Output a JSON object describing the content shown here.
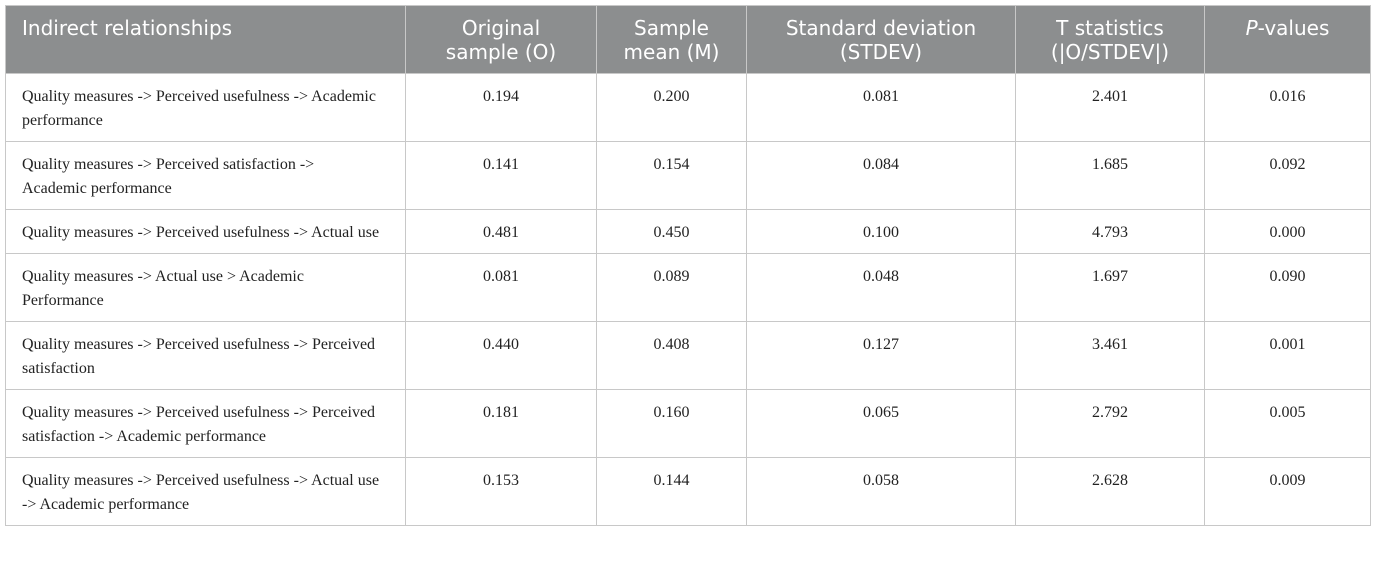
{
  "table": {
    "headers": [
      "Indirect relationships",
      "Original\nsample (O)",
      "Sample\nmean (M)",
      "Standard deviation\n(STDEV)",
      "T statistics\n(|O/STDEV|)",
      "P-values"
    ],
    "rows": [
      [
        "Quality measures -> Perceived usefulness -> Academic performance",
        "0.194",
        "0.200",
        "0.081",
        "2.401",
        "0.016"
      ],
      [
        "Quality measures -> Perceived satisfaction -> Academic performance",
        "0.141",
        "0.154",
        "0.084",
        "1.685",
        "0.092"
      ],
      [
        "Quality measures -> Perceived usefulness -> Actual use",
        "0.481",
        "0.450",
        "0.100",
        "4.793",
        "0.000"
      ],
      [
        "Quality measures -> Actual use > Academic Performance",
        "0.081",
        "0.089",
        "0.048",
        "1.697",
        "0.090"
      ],
      [
        "Quality measures -> Perceived usefulness -> Perceived satisfaction",
        "0.440",
        "0.408",
        "0.127",
        "3.461",
        "0.001"
      ],
      [
        "Quality measures -> Perceived usefulness -> Perceived satisfaction -> Academic performance",
        "0.181",
        "0.160",
        "0.065",
        "2.792",
        "0.005"
      ],
      [
        "Quality measures -> Perceived usefulness -> Actual use -> Academic performance",
        "0.153",
        "0.144",
        "0.058",
        "2.628",
        "0.009"
      ]
    ]
  }
}
